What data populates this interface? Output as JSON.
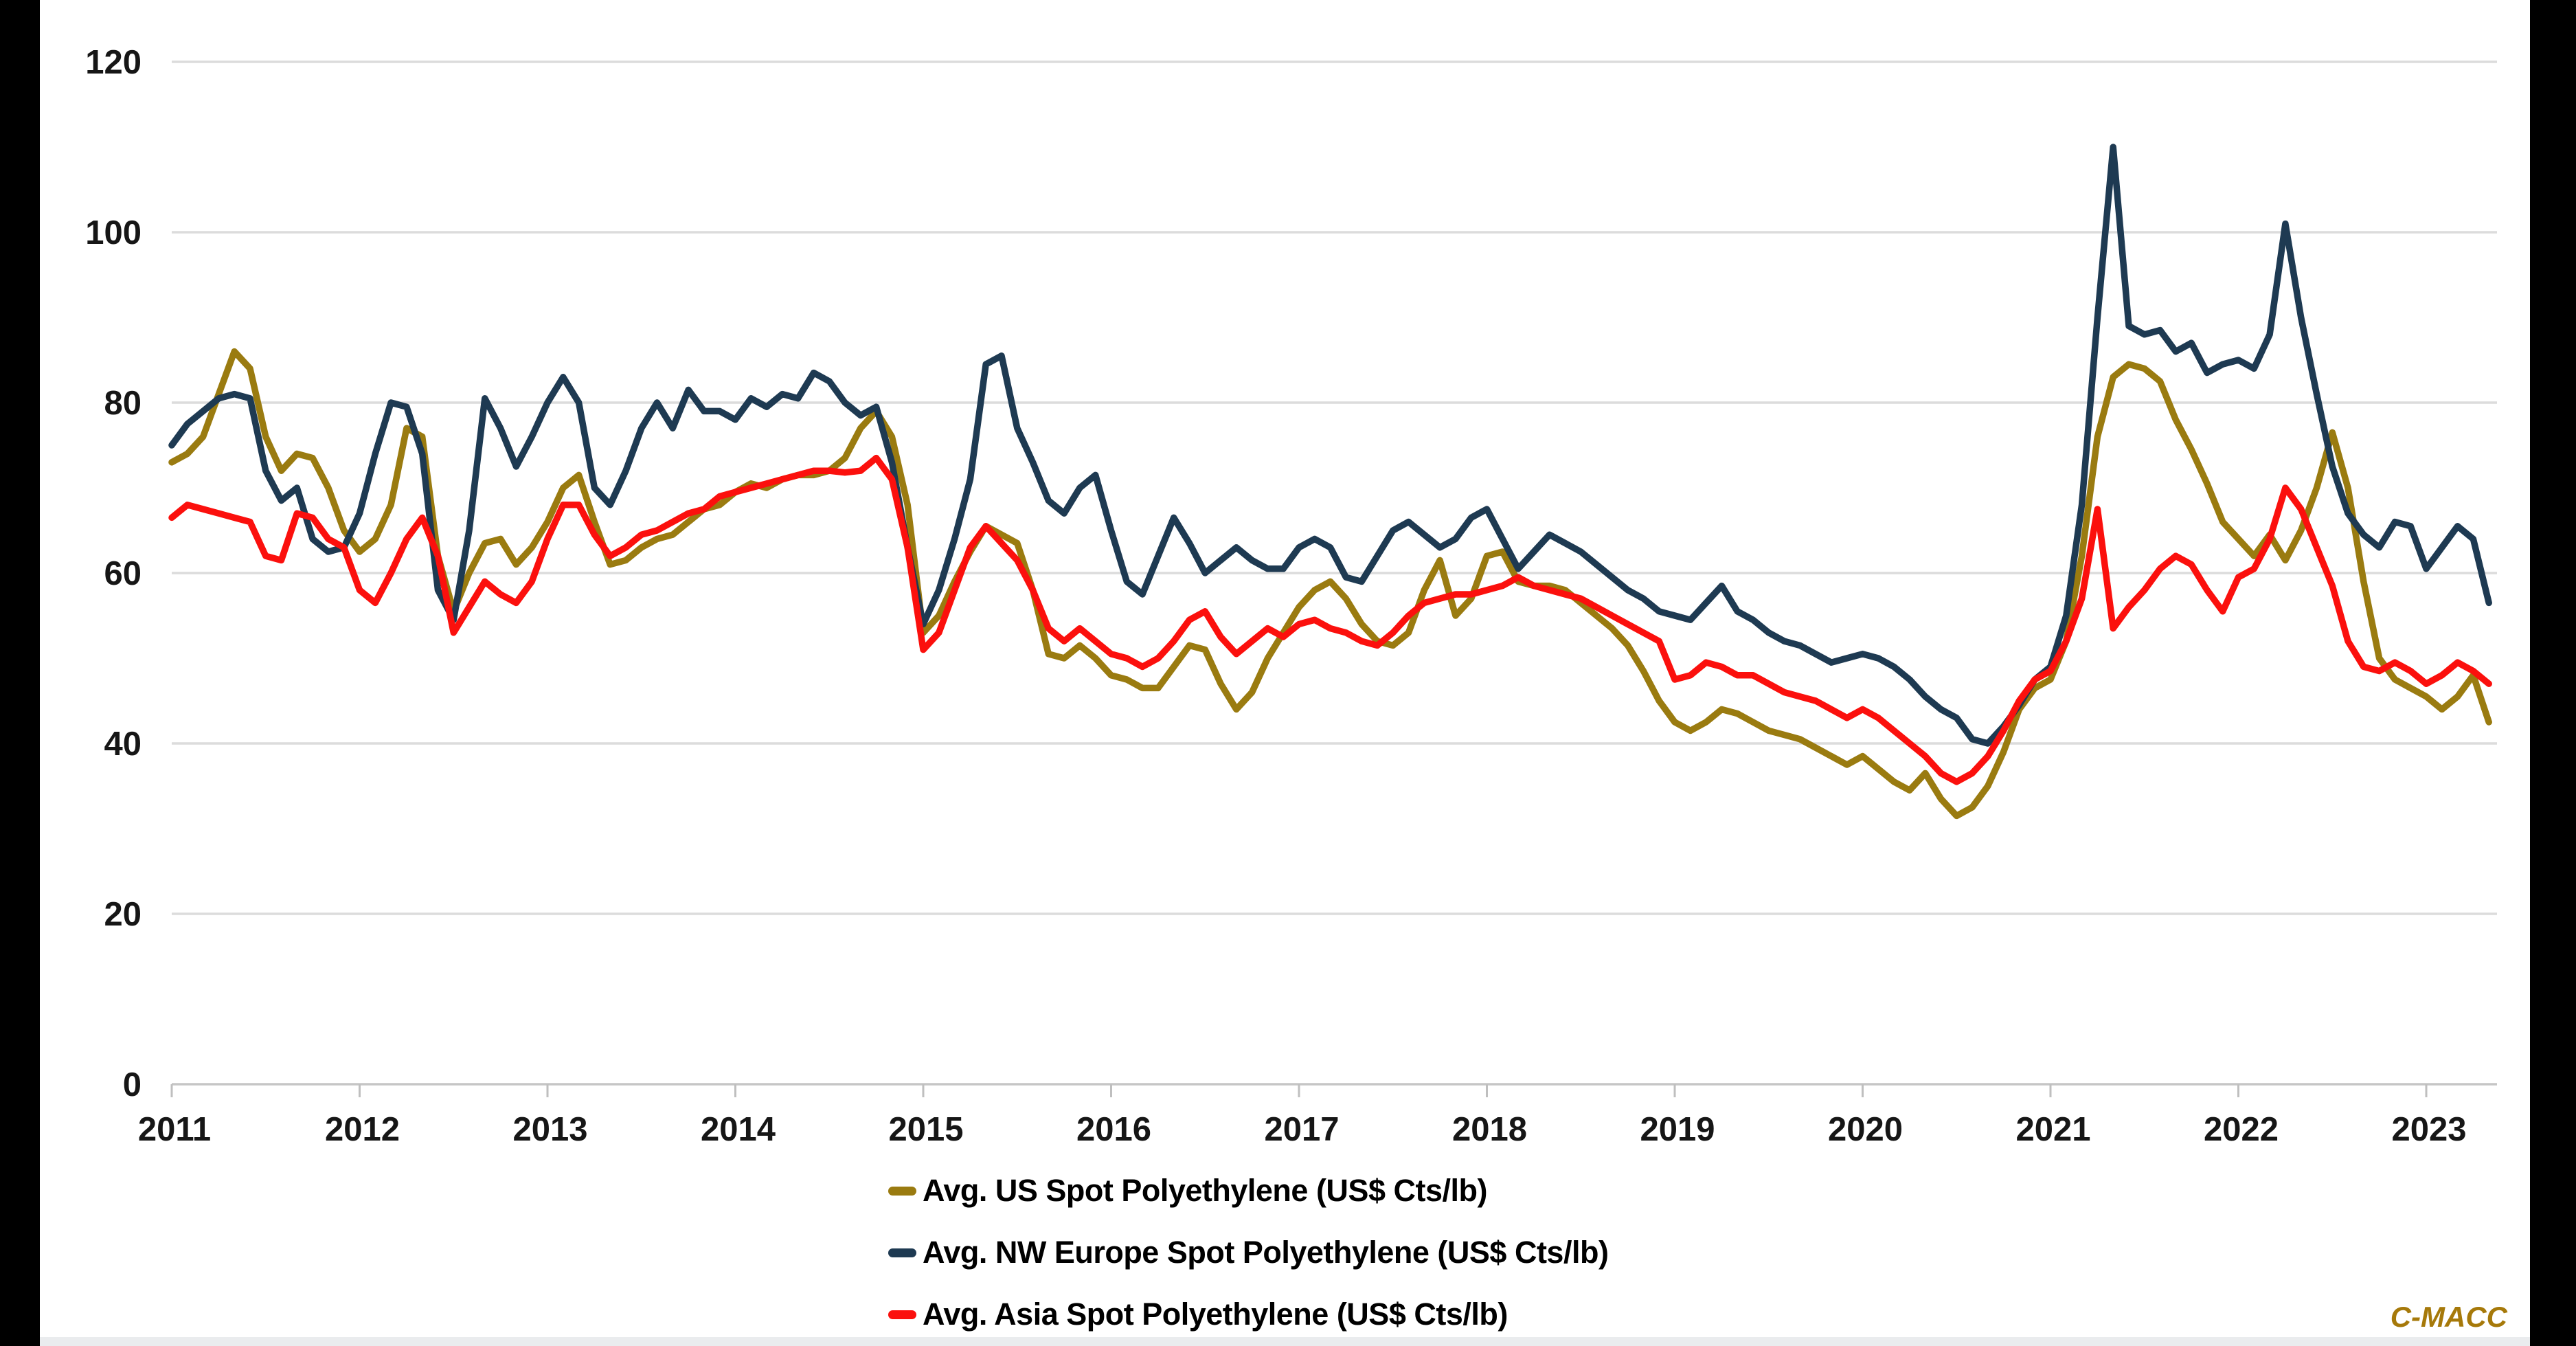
{
  "watermark": "C-MACC",
  "frame": {
    "letterbox_color": "#000000",
    "background_color": "#ffffff",
    "bottom_strip_color": "#EAECEE"
  },
  "chart_data": {
    "type": "line",
    "title": "",
    "xlabel": "",
    "ylabel": "",
    "grid": true,
    "legend_position": "bottom",
    "gridline_color": "#DCDCDC",
    "axis_line_color": "#C6C6C6",
    "tick_color": "#BFBFBF",
    "label_color": "#161616",
    "watermark": "C-MACC",
    "watermark_color": "#A6790A",
    "y_axis": {
      "range": [
        0,
        120
      ],
      "tick_values": [
        0,
        20,
        40,
        60,
        80,
        100,
        120
      ],
      "tick_labels": [
        "0",
        "20",
        "40",
        "60",
        "80",
        "100",
        "120"
      ]
    },
    "x_axis": {
      "tick_labels": [
        "2011",
        "2012",
        "2013",
        "2014",
        "2015",
        "2016",
        "2017",
        "2018",
        "2019",
        "2020",
        "2021",
        "2022",
        "2023"
      ],
      "start": "2011-01",
      "interval": "monthly"
    },
    "series": [
      {
        "name": "Avg. US Spot Polyethylene (US$ Cts/lb)",
        "color": "#9A7B10",
        "values": [
          73,
          74,
          76,
          81,
          86,
          84,
          76,
          72,
          74,
          73.5,
          70,
          65,
          62.5,
          64,
          68,
          77,
          76,
          62,
          55.5,
          60,
          63.5,
          64,
          61,
          63,
          66,
          70,
          71.5,
          66,
          61,
          61.5,
          63,
          64,
          64.5,
          66,
          67.5,
          68,
          69.5,
          70.5,
          70,
          71,
          71.5,
          71.5,
          72,
          73.5,
          77,
          79,
          76,
          68,
          53,
          55,
          59,
          62.5,
          65.5,
          64.5,
          63.5,
          58,
          50.5,
          50,
          51.5,
          50,
          48,
          47.5,
          46.5,
          46.5,
          49,
          51.5,
          51,
          47,
          44,
          46,
          50,
          53,
          56,
          58,
          59,
          57,
          54,
          52,
          51.5,
          53,
          58,
          61.5,
          55,
          57,
          62,
          62.5,
          59,
          58.5,
          58.5,
          58,
          56.5,
          55,
          53.5,
          51.5,
          48.5,
          45,
          42.5,
          41.5,
          42.5,
          44,
          43.5,
          42.5,
          41.5,
          41,
          40.5,
          39.5,
          38.5,
          37.5,
          38.5,
          37,
          35.5,
          34.5,
          36.5,
          33.5,
          31.5,
          32.5,
          35,
          39,
          44,
          46.5,
          47.5,
          52,
          62,
          76,
          83,
          84.5,
          84,
          82.5,
          78,
          74.5,
          70.5,
          66,
          64,
          62,
          64.5,
          61.5,
          65,
          70,
          76.5,
          70,
          59,
          50,
          47.5,
          46.5,
          45.5,
          44,
          45.5,
          48,
          42.5
        ]
      },
      {
        "name": "Avg. NW Europe Spot Polyethylene (US$ Cts/lb)",
        "color": "#1E3A52",
        "values": [
          75,
          77.5,
          79,
          80.5,
          81,
          80.5,
          72,
          68.5,
          70,
          64,
          62.5,
          63,
          67,
          74,
          80,
          79.5,
          74,
          58,
          54.5,
          65,
          80.5,
          77,
          72.5,
          76,
          80,
          83,
          80,
          70,
          68,
          72,
          77,
          80,
          77,
          81.5,
          79,
          79,
          78,
          80.5,
          79.5,
          81,
          80.5,
          83.5,
          82.5,
          80,
          78.5,
          79.5,
          73,
          63,
          54,
          58,
          64,
          71,
          84.5,
          85.5,
          77,
          73,
          68.5,
          67,
          70,
          71.5,
          65,
          59,
          57.5,
          62,
          66.5,
          63.5,
          60,
          61.5,
          63,
          61.5,
          60.5,
          60.5,
          63,
          64,
          63,
          59.5,
          59,
          62,
          65,
          66,
          64.5,
          63,
          64,
          66.5,
          67.5,
          64,
          60.5,
          62.5,
          64.5,
          63.5,
          62.5,
          61,
          59.5,
          58,
          57,
          55.5,
          55,
          54.5,
          56.5,
          58.5,
          55.5,
          54.5,
          53,
          52,
          51.5,
          50.5,
          49.5,
          50,
          50.5,
          50,
          49,
          47.5,
          45.5,
          44,
          43,
          40.5,
          40,
          42,
          44.5,
          47.5,
          49,
          55,
          68,
          90,
          110,
          89,
          88,
          88.5,
          86,
          87,
          83.5,
          84.5,
          85,
          84,
          88,
          101,
          90,
          81,
          72.5,
          67,
          64.5,
          63,
          66,
          65.5,
          60.5,
          63,
          65.5,
          64,
          56.5
        ]
      },
      {
        "name": "Avg. Asia Spot Polyethylene (US$ Cts/lb)",
        "color": "#FB100D",
        "values": [
          66.5,
          68,
          67.5,
          67,
          66.5,
          66,
          62,
          61.5,
          67,
          66.5,
          64,
          63,
          58,
          56.5,
          60,
          64,
          66.5,
          62,
          53,
          56,
          59,
          57.5,
          56.5,
          59,
          64,
          68,
          68,
          64.5,
          62,
          63,
          64.5,
          65,
          66,
          67,
          67.5,
          69,
          69.5,
          70,
          70.5,
          71,
          71.5,
          72,
          72,
          71.8,
          72,
          73.5,
          71,
          63,
          51,
          53,
          58,
          63,
          65.5,
          63.5,
          61.5,
          58,
          53.5,
          52,
          53.5,
          52,
          50.5,
          50,
          49,
          50,
          52,
          54.5,
          55.5,
          52.5,
          50.5,
          52,
          53.5,
          52.5,
          54,
          54.5,
          53.5,
          53,
          52,
          51.5,
          53,
          55,
          56.5,
          57,
          57.5,
          57.5,
          58,
          58.5,
          59.5,
          58.5,
          58,
          57.5,
          57,
          56,
          55,
          54,
          53,
          52,
          47.5,
          48,
          49.5,
          49,
          48,
          48,
          47,
          46,
          45.5,
          45,
          44,
          43,
          44,
          43,
          41.5,
          40,
          38.5,
          36.5,
          35.5,
          36.5,
          38.5,
          41.5,
          45,
          47.5,
          48.5,
          52,
          57,
          67.5,
          53.5,
          56,
          58,
          60.5,
          62,
          61,
          58,
          55.5,
          59.5,
          60.5,
          64,
          70,
          67.5,
          63,
          58.5,
          52,
          49,
          48.5,
          49.5,
          48.5,
          47,
          48,
          49.5,
          48.5,
          47
        ]
      }
    ]
  }
}
